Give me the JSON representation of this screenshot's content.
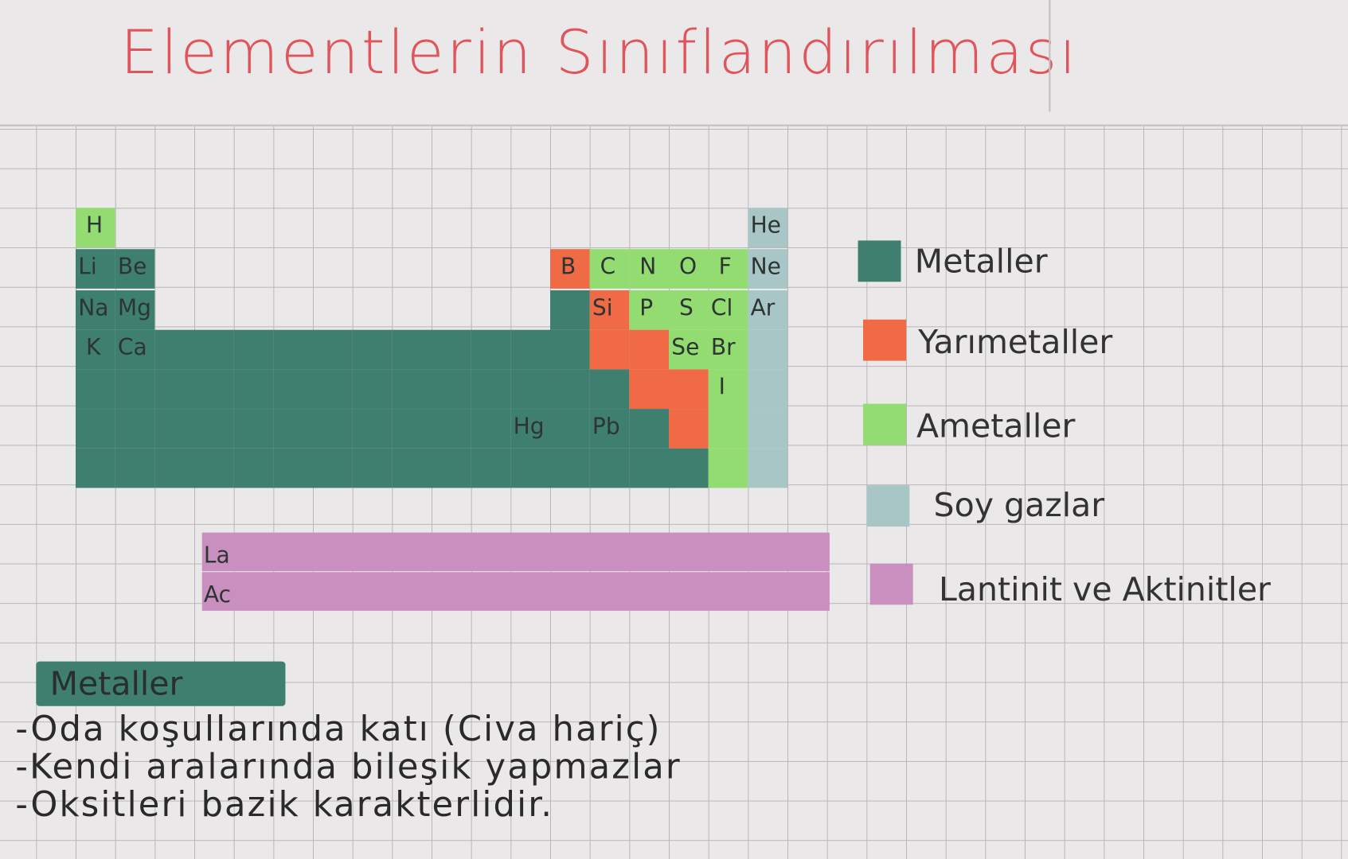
{
  "title": "Elementlerin Sınıflandırılması",
  "colors": {
    "metal": "#3f7f70",
    "metalloid": "#ef6a45",
    "nonmetal": "#93dc72",
    "noble_gas": "#a9c6c6",
    "lanthanide_actinide": "#c98fbf",
    "title": "#e0555c"
  },
  "elements": [
    "H",
    "He",
    "Li",
    "Be",
    "B",
    "C",
    "N",
    "O",
    "F",
    "Ne",
    "Na",
    "Mg",
    "Si",
    "P",
    "S",
    "Cl",
    "Ar",
    "K",
    "Ca",
    "Se",
    "Br",
    "I",
    "Hg",
    "Pb"
  ],
  "lanthanides_actinides": [
    "La",
    "Ac"
  ],
  "legend": [
    {
      "key": "metal",
      "label": "Metaller"
    },
    {
      "key": "metalloid",
      "label": "Yarımetaller"
    },
    {
      "key": "nonmetal",
      "label": "Ametaller"
    },
    {
      "key": "noble_gas",
      "label": "Soy gazlar"
    },
    {
      "key": "lanthanide_actinide",
      "label": "Lantinit ve Aktinitler"
    }
  ],
  "section": {
    "heading": "Metaller",
    "notes": [
      "-Oda koşullarında katı (Civa hariç)",
      "-Kendi aralarında bileşik yapmazlar",
      "-Oksitleri bazik karakterlidir."
    ]
  }
}
